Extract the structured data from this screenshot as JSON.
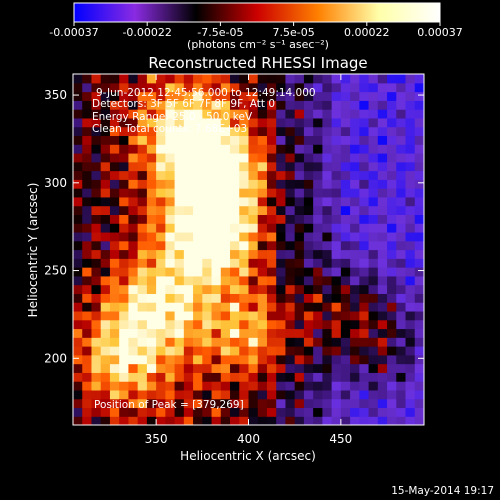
{
  "chart_data": {
    "type": "heatmap",
    "title": "Reconstructed RHESSI Image",
    "xlabel": "Heliocentric X (arcsec)",
    "ylabel": "Heliocentric Y (arcsec)",
    "xlim": [
      305,
      495
    ],
    "ylim": [
      162,
      362
    ],
    "x_ticks": [
      350,
      400,
      450
    ],
    "y_ticks": [
      200,
      250,
      300,
      350
    ],
    "colorbar": {
      "range": [
        -0.00037,
        0.00037
      ],
      "tick_labels": [
        "-0.00037",
        "-0.00022",
        "-7.5e-05",
        "7.5e-05",
        "0.00022",
        "0.00037"
      ],
      "unit_label": "(photons cm⁻² s⁻¹ asec⁻²)",
      "colors": [
        "#0000ff",
        "#8a2be2",
        "#000000",
        "#cc0000",
        "#ff8000",
        "#ffffaa",
        "#ffffff"
      ]
    },
    "annotations": [
      "9-Jun-2012 12:45:56.000 to 12:49:14.000",
      "Detectors: 3F 5F 6F 7F 8F 9F, Att 0",
      "Energy Range: 25.0 - 50.0 keV",
      "Clean    Total counts: 7.68E+03"
    ],
    "peak_label": "Position of Peak = [379,269]",
    "peak": [
      379,
      269
    ],
    "bright_regions": [
      {
        "x": 379,
        "y": 269,
        "relative_intensity": 1.0
      },
      {
        "x": 383,
        "y": 305,
        "relative_intensity": 0.9
      },
      {
        "x": 368,
        "y": 330,
        "relative_intensity": 0.75
      },
      {
        "x": 350,
        "y": 230,
        "relative_intensity": 0.7
      },
      {
        "x": 330,
        "y": 200,
        "relative_intensity": 0.65
      },
      {
        "x": 400,
        "y": 215,
        "relative_intensity": 0.55
      },
      {
        "x": 455,
        "y": 230,
        "relative_intensity": 0.5
      },
      {
        "x": 470,
        "y": 205,
        "relative_intensity": 0.45
      }
    ],
    "negative_region": {
      "x_range": [
        430,
        495
      ],
      "y_range": [
        162,
        362
      ]
    }
  },
  "footer": {
    "timestamp": "15-May-2014 19:17"
  }
}
